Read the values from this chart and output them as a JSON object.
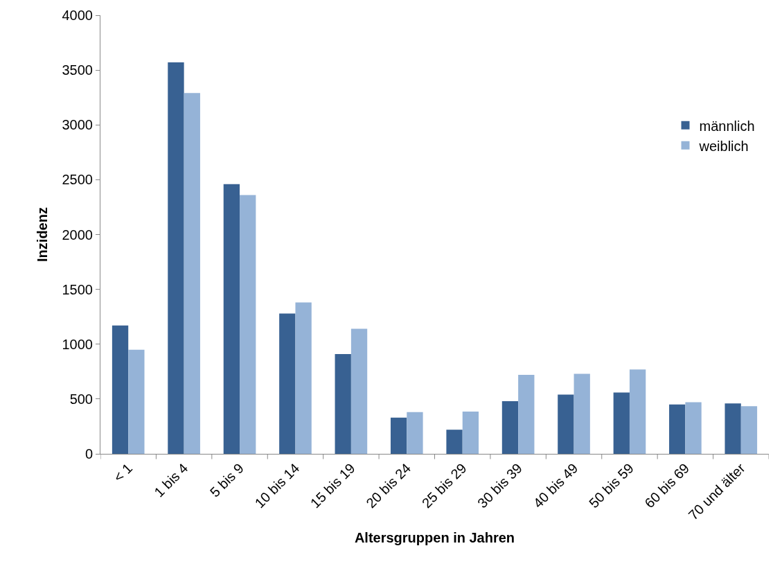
{
  "chart_data": {
    "type": "bar",
    "xlabel": "Altersgruppen in Jahren",
    "ylabel": "Inzidenz",
    "categories": [
      "< 1",
      "1 bis 4",
      "5 bis 9",
      "10 bis 14",
      "15 bis 19",
      "20 bis 24",
      "25 bis 29",
      "30 bis 39",
      "40 bis 49",
      "50 bis 59",
      "60 bis 69",
      "70 und älter"
    ],
    "series": [
      {
        "name": "männlich",
        "color": "#386192",
        "values": [
          1170,
          3570,
          2460,
          1280,
          910,
          330,
          220,
          480,
          540,
          560,
          450,
          460
        ]
      },
      {
        "name": "weiblich",
        "color": "#95b3d7",
        "values": [
          950,
          3290,
          2360,
          1380,
          1140,
          380,
          385,
          720,
          730,
          770,
          470,
          435
        ]
      }
    ],
    "ylim": [
      0,
      4000
    ],
    "yticks": [
      0,
      500,
      1000,
      1500,
      2000,
      2500,
      3000,
      3500,
      4000
    ],
    "legend": "top right"
  }
}
